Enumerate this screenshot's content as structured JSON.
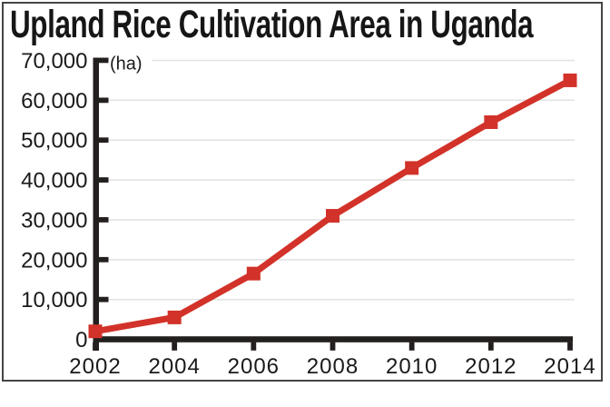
{
  "chart_data": {
    "type": "line",
    "title": "Upland Rice Cultivation Area in Uganda",
    "unit_label": "(ha)",
    "x": [
      2002,
      2004,
      2006,
      2008,
      2010,
      2012,
      2014
    ],
    "x_tick_labels": [
      "2002",
      "2004",
      "2006",
      "2008",
      "2010",
      "2012",
      "2014"
    ],
    "values": [
      2000,
      5500,
      16500,
      31000,
      43000,
      54500,
      65000
    ],
    "xlim": [
      2002,
      2014
    ],
    "ylim": [
      0,
      70000
    ],
    "y_ticks": [
      0,
      10000,
      20000,
      30000,
      40000,
      50000,
      60000,
      70000
    ],
    "y_tick_labels": [
      "0",
      "10,000",
      "20,000",
      "30,000",
      "40,000",
      "50,000",
      "60,000",
      "70,000"
    ],
    "grid": true,
    "legend_position": "none",
    "marker": "square",
    "colors": {
      "line": "#d23229",
      "grid": "#e3e3e3",
      "axis": "#241f1f",
      "text": "#1a1a1a",
      "frame_border": "#454545",
      "background": "#ffffff"
    }
  }
}
